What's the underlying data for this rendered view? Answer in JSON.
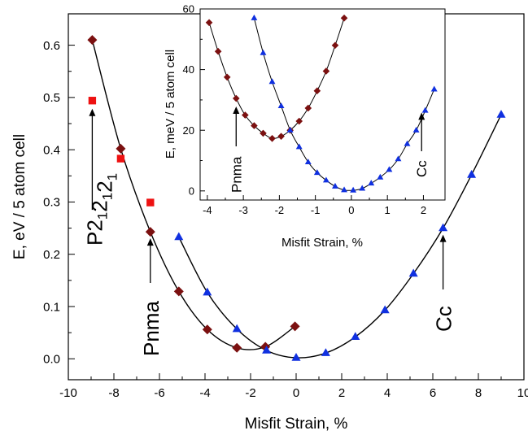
{
  "chart_data": [
    {
      "type": "scatter",
      "panel": "main",
      "xlabel": "Misfit Strain, %",
      "ylabel": "E, eV / 5 atom cell",
      "xlim": [
        -10,
        10
      ],
      "ylim": [
        -0.04,
        0.66
      ],
      "xticks": [
        -10,
        -8,
        -6,
        -4,
        -2,
        0,
        2,
        4,
        6,
        8,
        10
      ],
      "yticks": [
        0.0,
        0.1,
        0.2,
        0.3,
        0.4,
        0.5,
        0.6
      ],
      "xtick_labels": [
        "-10",
        "-8",
        "-6",
        "-4",
        "-2",
        "0",
        "2",
        "4",
        "6",
        "8",
        "10"
      ],
      "ytick_labels": [
        "0.0",
        "0.1",
        "0.2",
        "0.3",
        "0.4",
        "0.5",
        "0.6"
      ],
      "grid": false,
      "series": [
        {
          "marker": "diamond",
          "color": "#7b1010",
          "line": true,
          "x": [
            -8.95,
            -7.7,
            -6.4,
            -5.15,
            -3.9,
            -2.6,
            -1.35,
            -0.05
          ],
          "y": [
            0.61,
            0.402,
            0.243,
            0.129,
            0.056,
            0.021,
            0.023,
            0.062
          ]
        },
        {
          "marker": "square",
          "color": "#ee1111",
          "line": false,
          "x": [
            -8.95,
            -7.7,
            -6.4
          ],
          "y": [
            0.494,
            0.383,
            0.299
          ]
        },
        {
          "marker": "triangle",
          "color": "#1030e0",
          "line": true,
          "x": [
            -5.15,
            -3.9,
            -2.6,
            -1.3,
            0.0,
            1.3,
            2.6,
            3.9,
            5.15,
            6.45,
            7.7,
            9.0
          ],
          "y": [
            0.233,
            0.127,
            0.057,
            0.016,
            0.002,
            0.011,
            0.042,
            0.093,
            0.163,
            0.25,
            0.352,
            0.467
          ]
        }
      ],
      "annotations": [
        {
          "label_main": "P2",
          "label_sub": "1",
          "x": -8.95,
          "y": 0.494
        },
        {
          "label": "Pnma",
          "x": -6.4,
          "y": 0.243
        },
        {
          "label": "Cc",
          "x": 6.45,
          "y": 0.25
        }
      ]
    },
    {
      "type": "scatter",
      "panel": "inset",
      "xlabel": "Misfit Strain, %",
      "ylabel": "E, meV / 5 atom cell",
      "xlim": [
        -4.2,
        2.6
      ],
      "ylim": [
        -3,
        60
      ],
      "xticks": [
        -4,
        -3,
        -2,
        -1,
        0,
        1,
        2
      ],
      "yticks": [
        0,
        20,
        40,
        60
      ],
      "xtick_labels": [
        "-4",
        "-3",
        "-2",
        "-1",
        "0",
        "1",
        "2"
      ],
      "ytick_labels": [
        "0",
        "20",
        "40",
        "60"
      ],
      "grid": false,
      "series": [
        {
          "marker": "diamond",
          "color": "#7b1010",
          "line": true,
          "x": [
            -3.95,
            -3.7,
            -3.45,
            -3.2,
            -2.95,
            -2.7,
            -2.45,
            -2.2,
            -1.95,
            -1.7,
            -1.45,
            -1.2,
            -0.95,
            -0.7,
            -0.45,
            -0.2
          ],
          "y": [
            55.5,
            46.0,
            37.5,
            30.5,
            25.0,
            21.5,
            19.0,
            17.3,
            18.0,
            20.0,
            23.0,
            27.3,
            33.0,
            39.5,
            48.0,
            57.0
          ]
        },
        {
          "marker": "triangle",
          "color": "#1030e0",
          "line": true,
          "x": [
            -2.7,
            -2.45,
            -2.2,
            -1.95,
            -1.7,
            -1.45,
            -1.2,
            -0.95,
            -0.7,
            -0.45,
            -0.2,
            0.05,
            0.3,
            0.55,
            0.8,
            1.05,
            1.3,
            1.55,
            1.8,
            2.05,
            2.3
          ],
          "y": [
            57.0,
            45.5,
            36.0,
            28.0,
            20.0,
            14.5,
            9.5,
            6.0,
            3.5,
            1.5,
            0.3,
            0.2,
            0.8,
            2.5,
            4.5,
            7.0,
            10.5,
            15.5,
            20.0,
            26.5,
            33.5
          ]
        }
      ],
      "annotations": [
        {
          "label": "Pnma",
          "x": -3.2,
          "y": 30.5
        },
        {
          "label": "Cc",
          "x": 1.95,
          "y": 28.0
        }
      ]
    }
  ]
}
